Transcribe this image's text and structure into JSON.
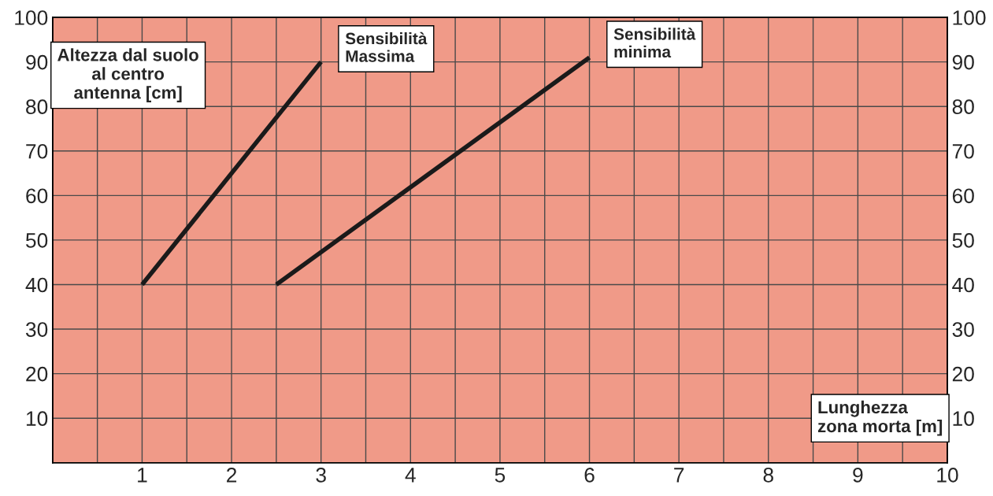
{
  "chart_data": {
    "type": "line",
    "xlabel": "Lunghezza\nzona morta [m]",
    "ylabel": "Altezza dal suolo\nal centro\nantenna [cm]",
    "series": [
      {
        "name": "Sensibilità\nMassima",
        "color": "#1a1a1a",
        "x": [
          1,
          3
        ],
        "values": [
          40,
          90
        ]
      },
      {
        "name": "Sensibilità\nminima",
        "color": "#1a1a1a",
        "x": [
          2.5,
          6
        ],
        "values": [
          40,
          91
        ]
      }
    ],
    "xlim": [
      0,
      10
    ],
    "xticks": [
      {
        "value": 0.5,
        "label": null
      },
      1,
      {
        "value": 1.5,
        "label": null
      },
      2,
      {
        "value": 2.5,
        "label": null
      },
      3,
      {
        "value": 3.5,
        "label": null
      },
      4,
      {
        "value": 4.5,
        "label": null
      },
      5,
      {
        "value": 5.5,
        "label": null
      },
      6,
      {
        "value": 6.5,
        "label": null
      },
      7,
      {
        "value": 7.5,
        "label": null
      },
      8,
      {
        "value": 8.5,
        "label": null
      },
      9,
      {
        "value": 9.5,
        "label": null
      },
      10
    ],
    "ylim": [
      0,
      100
    ],
    "yticks": [
      10,
      20,
      30,
      40,
      50,
      60,
      70,
      80,
      90,
      100
    ],
    "y2lim": [
      0,
      100
    ],
    "y2ticks": [
      10,
      20,
      30,
      40,
      50,
      60,
      70,
      80,
      90,
      100
    ],
    "grid": true,
    "line_style": "solid",
    "marker": "none"
  }
}
